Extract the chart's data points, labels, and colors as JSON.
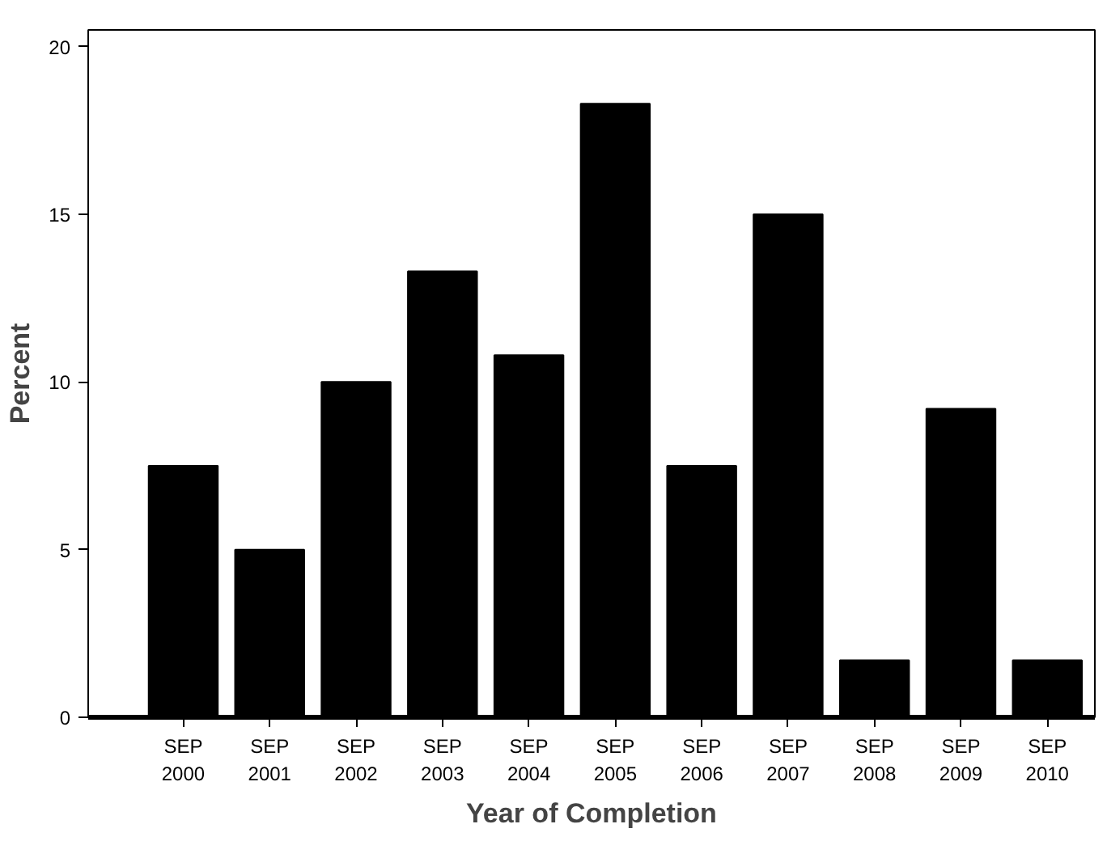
{
  "chart_data": {
    "type": "bar",
    "xlabel": "Year of Completion",
    "ylabel": "Percent",
    "categories": [
      "SEP\n2000",
      "SEP\n2001",
      "SEP\n2002",
      "SEP\n2003",
      "SEP\n2004",
      "SEP\n2005",
      "SEP\n2006",
      "SEP\n2007",
      "SEP\n2008",
      "SEP\n2009",
      "SEP\n2010"
    ],
    "values": [
      7.5,
      5.0,
      10.0,
      13.3,
      10.8,
      18.3,
      7.5,
      15.0,
      1.7,
      9.2,
      1.7
    ],
    "color": "#000000",
    "ylim": [
      0,
      20.5
    ],
    "yticks": [
      0,
      5,
      10,
      15,
      20
    ],
    "grid": false
  }
}
